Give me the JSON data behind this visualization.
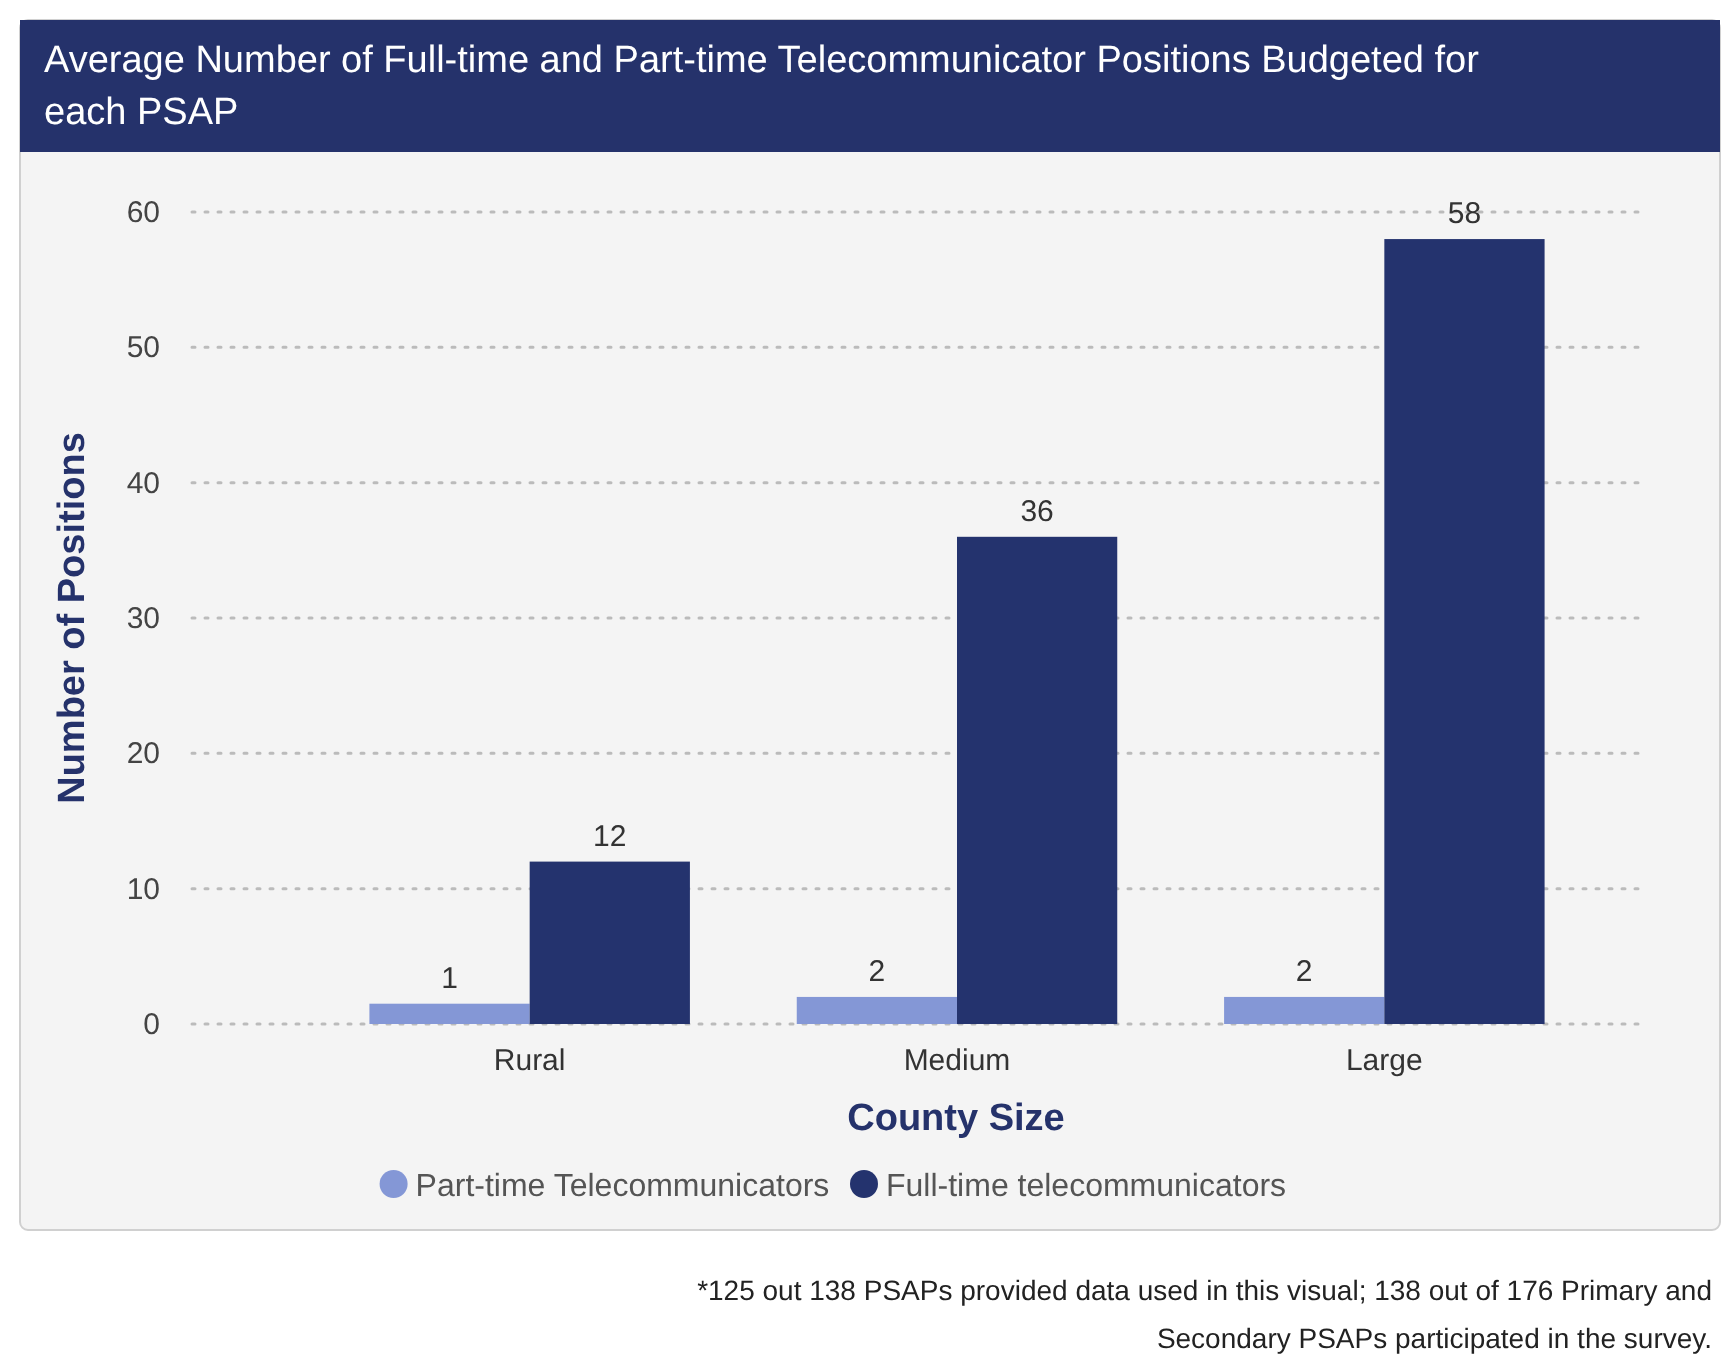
{
  "chart_data": {
    "type": "bar",
    "title": "Average Number of Full-time and Part-time Telecommunicator Positions Budgeted for each PSAP",
    "xlabel": "County Size",
    "ylabel": "Number of Positions",
    "categories": [
      "Rural",
      "Medium",
      "Large"
    ],
    "series": [
      {
        "name": "Part-time Telecommunicators",
        "color": "#8497d6",
        "values": [
          1.5,
          2,
          2
        ],
        "value_labels": [
          "1",
          "2",
          "2"
        ]
      },
      {
        "name": "Full-time telecommunicators",
        "color": "#24336e",
        "values": [
          12,
          36,
          58
        ],
        "value_labels": [
          "12",
          "36",
          "58"
        ]
      }
    ],
    "ylim": [
      0,
      60
    ],
    "yticks": [
      0,
      10,
      20,
      30,
      40,
      50,
      60
    ],
    "grid": "y",
    "legend": "bottom",
    "annotations": [
      "*125 out 138 PSAPs provided data used in this visual; 138 out of 176 Primary and Secondary PSAPs participated in the survey."
    ]
  }
}
